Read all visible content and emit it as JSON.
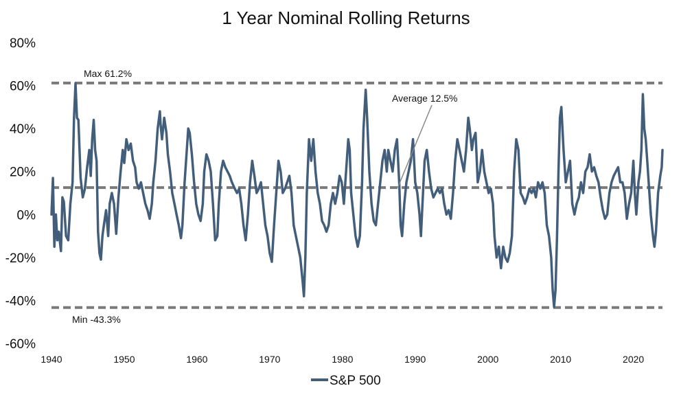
{
  "chart_data": {
    "type": "line",
    "title": "1 Year Nominal Rolling Returns",
    "xlabel": "",
    "ylabel": "",
    "xlim": [
      1940,
      2024
    ],
    "ylim": [
      -60,
      80
    ],
    "x_ticks": [
      1940,
      1950,
      1960,
      1970,
      1980,
      1990,
      2000,
      2010,
      2020
    ],
    "x_tick_labels": [
      "1940",
      "1950",
      "1960",
      "1970",
      "1980",
      "1990",
      "2000",
      "2010",
      "2020"
    ],
    "y_ticks": [
      -60,
      -40,
      -20,
      0,
      20,
      40,
      60,
      80
    ],
    "y_tick_labels": [
      "-60%",
      "-40%",
      "-20%",
      "0%",
      "20%",
      "40%",
      "60%",
      "80%"
    ],
    "grid": false,
    "legend_position": "bottom",
    "colors": {
      "series": "#435e7a",
      "reference": "#7a7a7a"
    },
    "reference_lines": [
      {
        "label": "Max 61.2%",
        "value": 61.2
      },
      {
        "label": "Average 12.5%",
        "value": 12.5
      },
      {
        "label": "Min -43.3%",
        "value": -43.3
      }
    ],
    "series": [
      {
        "name": "S&P 500",
        "points": [
          [
            1940.0,
            0
          ],
          [
            1940.2,
            17
          ],
          [
            1940.4,
            -15
          ],
          [
            1940.6,
            0
          ],
          [
            1940.8,
            -12
          ],
          [
            1941.0,
            -8
          ],
          [
            1941.3,
            -17
          ],
          [
            1941.5,
            8
          ],
          [
            1941.7,
            6
          ],
          [
            1942.0,
            -10
          ],
          [
            1942.3,
            -12
          ],
          [
            1942.6,
            5
          ],
          [
            1942.9,
            15
          ],
          [
            1943.1,
            45
          ],
          [
            1943.3,
            61
          ],
          [
            1943.5,
            45
          ],
          [
            1943.7,
            44
          ],
          [
            1944.0,
            17
          ],
          [
            1944.3,
            8
          ],
          [
            1944.6,
            12
          ],
          [
            1944.9,
            22
          ],
          [
            1945.2,
            30
          ],
          [
            1945.4,
            18
          ],
          [
            1945.6,
            35
          ],
          [
            1945.8,
            44
          ],
          [
            1946.0,
            30
          ],
          [
            1946.2,
            25
          ],
          [
            1946.4,
            -8
          ],
          [
            1946.6,
            -18
          ],
          [
            1946.8,
            -21
          ],
          [
            1947.0,
            -10
          ],
          [
            1947.2,
            -5
          ],
          [
            1947.5,
            2
          ],
          [
            1947.8,
            -10
          ],
          [
            1948.0,
            5
          ],
          [
            1948.3,
            10
          ],
          [
            1948.6,
            5
          ],
          [
            1948.9,
            -9
          ],
          [
            1949.2,
            8
          ],
          [
            1949.5,
            20
          ],
          [
            1949.8,
            30
          ],
          [
            1950.0,
            24
          ],
          [
            1950.3,
            35
          ],
          [
            1950.6,
            30
          ],
          [
            1950.9,
            33
          ],
          [
            1951.2,
            25
          ],
          [
            1951.5,
            22
          ],
          [
            1951.7,
            15
          ],
          [
            1952.0,
            12
          ],
          [
            1952.3,
            15
          ],
          [
            1952.6,
            10
          ],
          [
            1952.9,
            5
          ],
          [
            1953.2,
            2
          ],
          [
            1953.5,
            -2
          ],
          [
            1953.8,
            5
          ],
          [
            1954.0,
            15
          ],
          [
            1954.3,
            25
          ],
          [
            1954.6,
            40
          ],
          [
            1954.9,
            48
          ],
          [
            1955.0,
            42
          ],
          [
            1955.2,
            35
          ],
          [
            1955.5,
            45
          ],
          [
            1955.8,
            38
          ],
          [
            1956.0,
            28
          ],
          [
            1956.3,
            20
          ],
          [
            1956.6,
            10
          ],
          [
            1956.9,
            5
          ],
          [
            1957.2,
            0
          ],
          [
            1957.5,
            -5
          ],
          [
            1957.8,
            -11
          ],
          [
            1958.0,
            -5
          ],
          [
            1958.3,
            15
          ],
          [
            1958.6,
            30
          ],
          [
            1958.8,
            40
          ],
          [
            1959.0,
            38
          ],
          [
            1959.3,
            28
          ],
          [
            1959.6,
            15
          ],
          [
            1959.9,
            5
          ],
          [
            1960.2,
            0
          ],
          [
            1960.5,
            -3
          ],
          [
            1960.8,
            5
          ],
          [
            1961.0,
            20
          ],
          [
            1961.3,
            28
          ],
          [
            1961.6,
            25
          ],
          [
            1961.9,
            20
          ],
          [
            1962.2,
            5
          ],
          [
            1962.5,
            -12
          ],
          [
            1962.8,
            -10
          ],
          [
            1963.0,
            5
          ],
          [
            1963.3,
            20
          ],
          [
            1963.6,
            25
          ],
          [
            1963.9,
            22
          ],
          [
            1964.2,
            20
          ],
          [
            1964.5,
            18
          ],
          [
            1964.8,
            15
          ],
          [
            1965.2,
            12
          ],
          [
            1965.5,
            10
          ],
          [
            1965.8,
            12
          ],
          [
            1966.1,
            5
          ],
          [
            1966.4,
            -5
          ],
          [
            1966.7,
            -12
          ],
          [
            1967.0,
            0
          ],
          [
            1967.3,
            15
          ],
          [
            1967.6,
            25
          ],
          [
            1967.9,
            18
          ],
          [
            1968.2,
            10
          ],
          [
            1968.5,
            12
          ],
          [
            1968.8,
            15
          ],
          [
            1969.1,
            5
          ],
          [
            1969.4,
            -5
          ],
          [
            1969.7,
            -10
          ],
          [
            1970.0,
            -18
          ],
          [
            1970.3,
            -22
          ],
          [
            1970.6,
            -5
          ],
          [
            1970.9,
            10
          ],
          [
            1971.2,
            25
          ],
          [
            1971.5,
            20
          ],
          [
            1971.8,
            10
          ],
          [
            1972.1,
            12
          ],
          [
            1972.4,
            15
          ],
          [
            1972.7,
            18
          ],
          [
            1973.0,
            10
          ],
          [
            1973.3,
            -5
          ],
          [
            1973.6,
            -10
          ],
          [
            1973.9,
            -15
          ],
          [
            1974.2,
            -20
          ],
          [
            1974.5,
            -30
          ],
          [
            1974.7,
            -38
          ],
          [
            1974.9,
            -20
          ],
          [
            1975.1,
            10
          ],
          [
            1975.4,
            35
          ],
          [
            1975.7,
            25
          ],
          [
            1976.0,
            35
          ],
          [
            1976.3,
            20
          ],
          [
            1976.6,
            10
          ],
          [
            1976.9,
            5
          ],
          [
            1977.2,
            -3
          ],
          [
            1977.5,
            -5
          ],
          [
            1977.8,
            -8
          ],
          [
            1978.1,
            -5
          ],
          [
            1978.4,
            5
          ],
          [
            1978.7,
            10
          ],
          [
            1979.0,
            5
          ],
          [
            1979.3,
            10
          ],
          [
            1979.6,
            18
          ],
          [
            1979.9,
            15
          ],
          [
            1980.2,
            5
          ],
          [
            1980.5,
            20
          ],
          [
            1980.8,
            35
          ],
          [
            1981.0,
            30
          ],
          [
            1981.2,
            10
          ],
          [
            1981.5,
            0
          ],
          [
            1981.8,
            -10
          ],
          [
            1982.1,
            -15
          ],
          [
            1982.4,
            -10
          ],
          [
            1982.7,
            15
          ],
          [
            1982.9,
            40
          ],
          [
            1983.2,
            58
          ],
          [
            1983.4,
            45
          ],
          [
            1983.7,
            20
          ],
          [
            1984.0,
            5
          ],
          [
            1984.3,
            -3
          ],
          [
            1984.6,
            -5
          ],
          [
            1984.9,
            5
          ],
          [
            1985.2,
            15
          ],
          [
            1985.5,
            25
          ],
          [
            1985.8,
            30
          ],
          [
            1986.1,
            20
          ],
          [
            1986.3,
            30
          ],
          [
            1986.6,
            25
          ],
          [
            1986.9,
            20
          ],
          [
            1987.2,
            30
          ],
          [
            1987.5,
            35
          ],
          [
            1987.8,
            15
          ],
          [
            1988.0,
            -5
          ],
          [
            1988.2,
            -10
          ],
          [
            1988.5,
            5
          ],
          [
            1988.8,
            15
          ],
          [
            1989.1,
            20
          ],
          [
            1989.4,
            25
          ],
          [
            1989.7,
            35
          ],
          [
            1990.0,
            15
          ],
          [
            1990.3,
            10
          ],
          [
            1990.6,
            0
          ],
          [
            1990.8,
            -10
          ],
          [
            1991.0,
            5
          ],
          [
            1991.3,
            25
          ],
          [
            1991.6,
            30
          ],
          [
            1991.9,
            20
          ],
          [
            1992.2,
            12
          ],
          [
            1992.5,
            8
          ],
          [
            1992.8,
            10
          ],
          [
            1993.1,
            12
          ],
          [
            1993.4,
            10
          ],
          [
            1993.7,
            12
          ],
          [
            1994.0,
            5
          ],
          [
            1994.3,
            0
          ],
          [
            1994.6,
            2
          ],
          [
            1994.9,
            -2
          ],
          [
            1995.2,
            10
          ],
          [
            1995.5,
            25
          ],
          [
            1995.8,
            35
          ],
          [
            1996.1,
            30
          ],
          [
            1996.4,
            25
          ],
          [
            1996.7,
            20
          ],
          [
            1997.0,
            30
          ],
          [
            1997.3,
            45
          ],
          [
            1997.5,
            40
          ],
          [
            1997.8,
            30
          ],
          [
            1998.0,
            35
          ],
          [
            1998.3,
            38
          ],
          [
            1998.6,
            15
          ],
          [
            1998.9,
            20
          ],
          [
            1999.2,
            30
          ],
          [
            1999.5,
            20
          ],
          [
            1999.8,
            15
          ],
          [
            2000.1,
            10
          ],
          [
            2000.4,
            12
          ],
          [
            2000.7,
            5
          ],
          [
            2000.9,
            -10
          ],
          [
            2001.2,
            -20
          ],
          [
            2001.5,
            -15
          ],
          [
            2001.8,
            -25
          ],
          [
            2002.1,
            -15
          ],
          [
            2002.4,
            -20
          ],
          [
            2002.7,
            -22
          ],
          [
            2003.0,
            -18
          ],
          [
            2003.3,
            -10
          ],
          [
            2003.6,
            20
          ],
          [
            2003.9,
            35
          ],
          [
            2004.2,
            30
          ],
          [
            2004.5,
            10
          ],
          [
            2004.8,
            8
          ],
          [
            2005.1,
            5
          ],
          [
            2005.4,
            8
          ],
          [
            2005.7,
            12
          ],
          [
            2006.0,
            10
          ],
          [
            2006.3,
            12
          ],
          [
            2006.6,
            8
          ],
          [
            2006.9,
            15
          ],
          [
            2007.2,
            12
          ],
          [
            2007.5,
            15
          ],
          [
            2007.8,
            10
          ],
          [
            2008.1,
            -5
          ],
          [
            2008.4,
            -10
          ],
          [
            2008.7,
            -20
          ],
          [
            2008.9,
            -35
          ],
          [
            2009.1,
            -43
          ],
          [
            2009.3,
            -35
          ],
          [
            2009.5,
            -10
          ],
          [
            2009.7,
            20
          ],
          [
            2009.9,
            45
          ],
          [
            2010.1,
            50
          ],
          [
            2010.4,
            30
          ],
          [
            2010.7,
            15
          ],
          [
            2011.0,
            20
          ],
          [
            2011.3,
            25
          ],
          [
            2011.6,
            5
          ],
          [
            2011.9,
            0
          ],
          [
            2012.2,
            5
          ],
          [
            2012.5,
            8
          ],
          [
            2012.8,
            15
          ],
          [
            2013.1,
            10
          ],
          [
            2013.4,
            20
          ],
          [
            2013.7,
            22
          ],
          [
            2014.0,
            28
          ],
          [
            2014.3,
            20
          ],
          [
            2014.6,
            22
          ],
          [
            2014.9,
            18
          ],
          [
            2015.2,
            15
          ],
          [
            2015.5,
            8
          ],
          [
            2015.8,
            2
          ],
          [
            2016.1,
            -2
          ],
          [
            2016.4,
            0
          ],
          [
            2016.7,
            10
          ],
          [
            2017.0,
            15
          ],
          [
            2017.3,
            18
          ],
          [
            2017.6,
            20
          ],
          [
            2017.9,
            22
          ],
          [
            2018.2,
            15
          ],
          [
            2018.5,
            15
          ],
          [
            2018.8,
            10
          ],
          [
            2019.1,
            -2
          ],
          [
            2019.4,
            5
          ],
          [
            2019.7,
            10
          ],
          [
            2020.0,
            25
          ],
          [
            2020.2,
            10
          ],
          [
            2020.4,
            0
          ],
          [
            2020.7,
            15
          ],
          [
            2020.9,
            20
          ],
          [
            2021.1,
            30
          ],
          [
            2021.3,
            56
          ],
          [
            2021.5,
            40
          ],
          [
            2021.7,
            35
          ],
          [
            2021.9,
            25
          ],
          [
            2022.1,
            15
          ],
          [
            2022.4,
            0
          ],
          [
            2022.7,
            -10
          ],
          [
            2022.9,
            -15
          ],
          [
            2023.1,
            -8
          ],
          [
            2023.4,
            10
          ],
          [
            2023.7,
            18
          ],
          [
            2023.9,
            22
          ],
          [
            2024.0,
            30
          ]
        ]
      }
    ]
  }
}
